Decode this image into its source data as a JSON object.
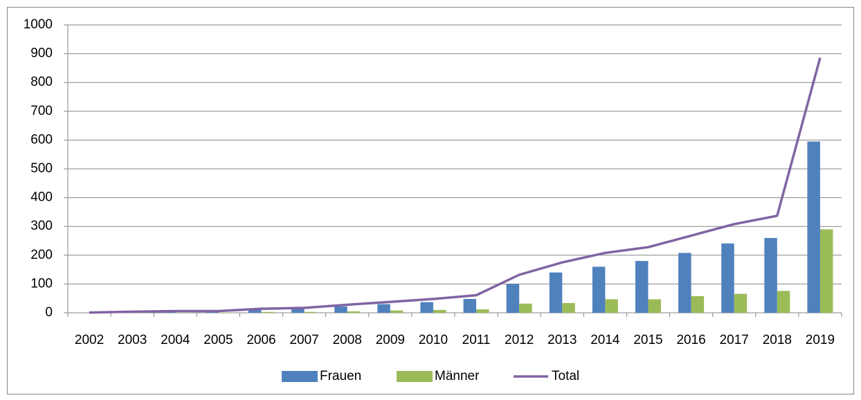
{
  "chart_data": {
    "type": "combo",
    "categories": [
      "2002",
      "2003",
      "2004",
      "2005",
      "2006",
      "2007",
      "2008",
      "2009",
      "2010",
      "2011",
      "2012",
      "2013",
      "2014",
      "2015",
      "2016",
      "2017",
      "2018",
      "2019"
    ],
    "series": [
      {
        "name": "Frauen",
        "type": "bar",
        "color": "#4f81bd",
        "values": [
          0,
          1,
          3,
          3,
          10,
          14,
          22,
          30,
          37,
          48,
          100,
          140,
          160,
          180,
          208,
          241,
          260,
          595
        ]
      },
      {
        "name": "Männer",
        "type": "bar",
        "color": "#9bbb59",
        "values": [
          0,
          1,
          1,
          1,
          3,
          3,
          5,
          8,
          10,
          12,
          32,
          34,
          47,
          47,
          58,
          66,
          76,
          290
        ]
      },
      {
        "name": "Total",
        "type": "line",
        "color": "#8064a2",
        "values": [
          1,
          4,
          6,
          6,
          14,
          17,
          28,
          38,
          48,
          61,
          132,
          175,
          208,
          228,
          268,
          308,
          337,
          886
        ]
      }
    ],
    "ylim": [
      0,
      1000
    ],
    "yticks": [
      0,
      100,
      200,
      300,
      400,
      500,
      600,
      700,
      800,
      900,
      1000
    ],
    "grid": true,
    "legend": "bottom"
  }
}
